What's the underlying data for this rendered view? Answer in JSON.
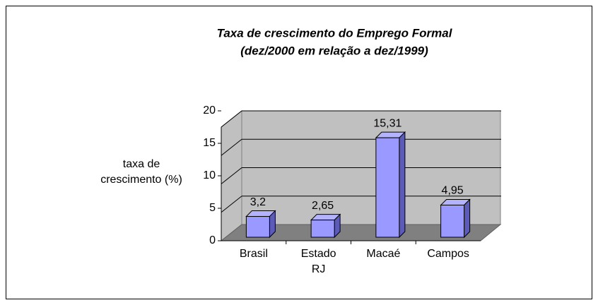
{
  "chart_data": {
    "type": "bar3d",
    "title": "Taxa de crescimento do Emprego Formal",
    "subtitle": "(dez/2000 em relação a dez/1999)",
    "y_label": "taxa de crescimento (%)",
    "categories": [
      "Brasil",
      "Estado RJ",
      "Macaé",
      "Campos"
    ],
    "values": [
      3.2,
      2.65,
      15.31,
      4.95
    ],
    "value_labels": [
      "3,2",
      "2,65",
      "15,31",
      "4,95"
    ],
    "color": "#9999ff",
    "ylim": [
      0,
      20
    ],
    "yticks": [
      0,
      5,
      10,
      15,
      20
    ],
    "grid": true
  }
}
